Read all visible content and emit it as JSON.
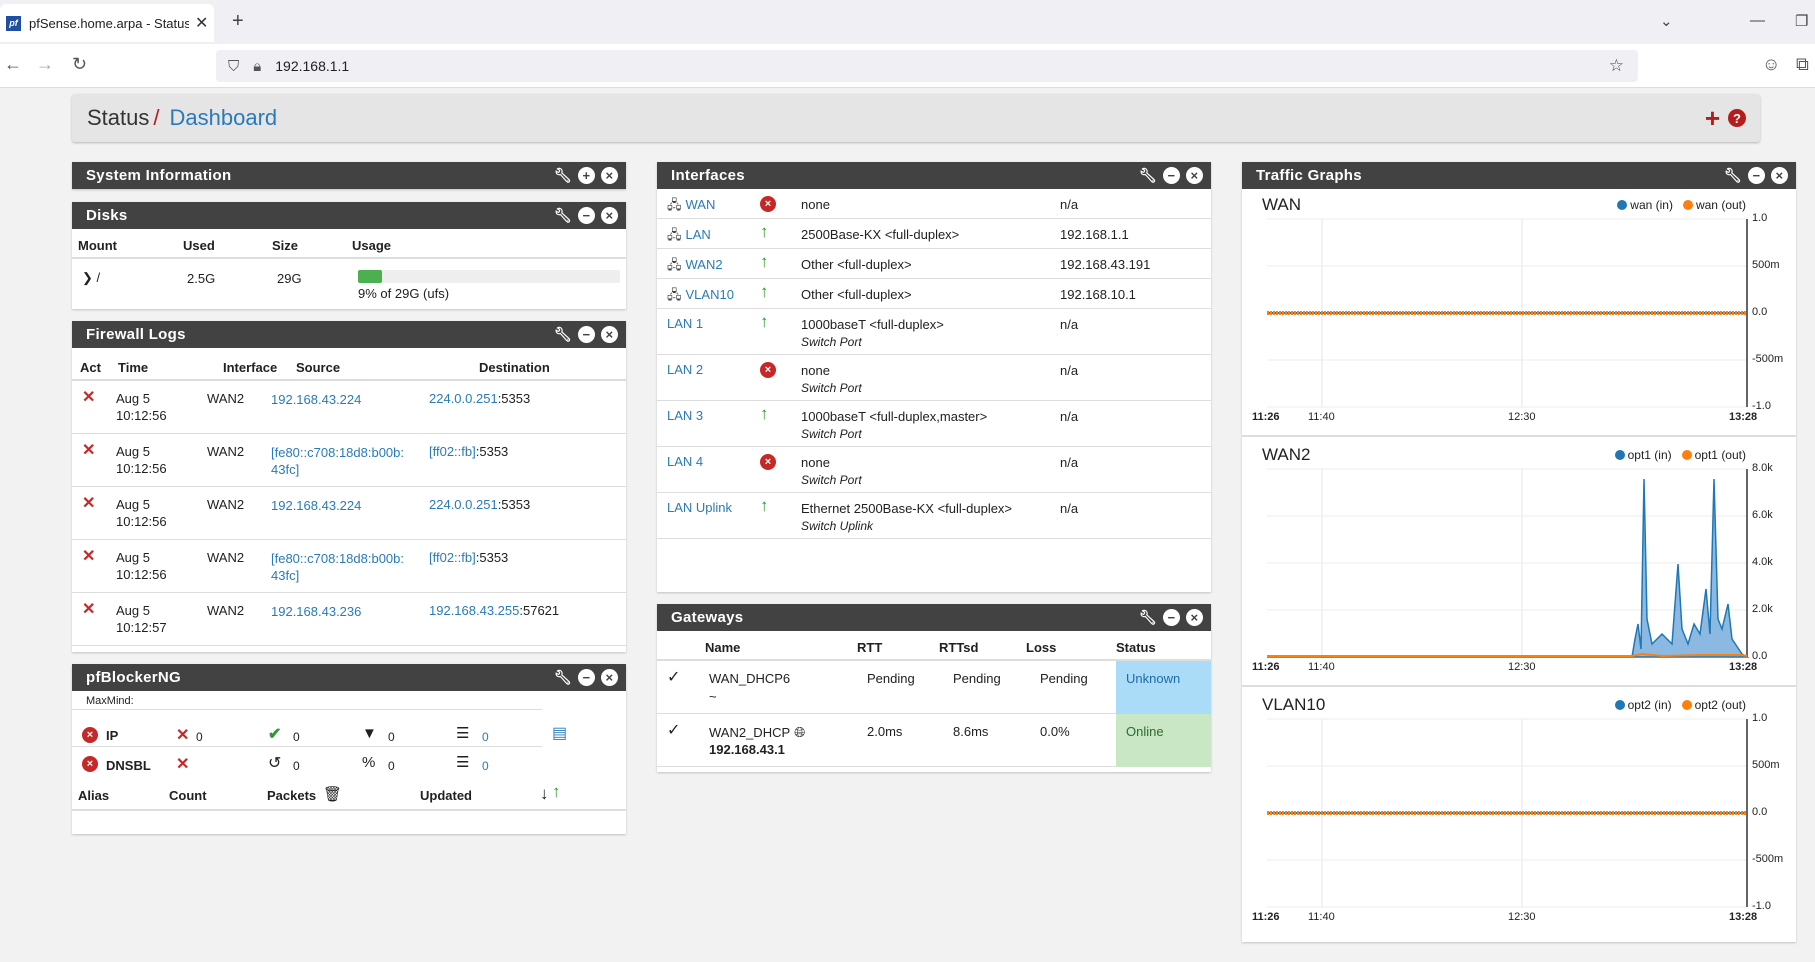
{
  "browser": {
    "tab_title": "pfSense.home.arpa - Status: Dashboard",
    "url": "192.168.1.1"
  },
  "breadcrumb": {
    "status": "Status",
    "sep": "/",
    "page": "Dashboard"
  },
  "system_info": {
    "title": "System Information"
  },
  "disks": {
    "title": "Disks",
    "headers": [
      "Mount",
      "Used",
      "Size",
      "Usage"
    ],
    "row": {
      "mount": "/",
      "used": "2.5G",
      "size": "29G",
      "usage_text": "9% of 29G (ufs)",
      "usage_percent": 9
    }
  },
  "firewall": {
    "title": "Firewall Logs",
    "headers": [
      "Act",
      "Time",
      "Interface",
      "Source",
      "Destination"
    ],
    "rows": [
      {
        "date": "Aug 5",
        "time": "10:12:56",
        "iface": "WAN2",
        "src": "192.168.43.224",
        "dst": "224.0.0.251",
        "port": ":5353"
      },
      {
        "date": "Aug 5",
        "time": "10:12:56",
        "iface": "WAN2",
        "src": "[fe80::c708:18d8:b00b:43fc]",
        "dst": "[ff02::fb]",
        "port": ":5353"
      },
      {
        "date": "Aug 5",
        "time": "10:12:56",
        "iface": "WAN2",
        "src": "192.168.43.224",
        "dst": "224.0.0.251",
        "port": ":5353"
      },
      {
        "date": "Aug 5",
        "time": "10:12:56",
        "iface": "WAN2",
        "src": "[fe80::c708:18d8:b00b:43fc]",
        "dst": "[ff02::fb]",
        "port": ":5353"
      },
      {
        "date": "Aug 5",
        "time": "10:12:57",
        "iface": "WAN2",
        "src": "192.168.43.236",
        "dst": "192.168.43.255",
        "port": ":57621"
      }
    ]
  },
  "pfblocker": {
    "title": "pfBlockerNG",
    "maxmind": "MaxMind:",
    "ip_label": "IP",
    "dnsbl_label": "DNSBL",
    "ip_vals": [
      "0",
      "0",
      "0",
      "0"
    ],
    "dnsbl_vals": [
      "0",
      "0",
      "0"
    ],
    "headers": [
      "Alias",
      "Count",
      "Packets",
      "Updated"
    ]
  },
  "interfaces": {
    "title": "Interfaces",
    "rows": [
      {
        "name": "WAN",
        "status": "down",
        "media": "none",
        "sub": "",
        "ip": "n/a",
        "net_icon": true
      },
      {
        "name": "LAN",
        "status": "up",
        "media": "2500Base-KX <full-duplex>",
        "sub": "",
        "ip": "192.168.1.1",
        "net_icon": true
      },
      {
        "name": "WAN2",
        "status": "up",
        "media": "Other <full-duplex>",
        "sub": "",
        "ip": "192.168.43.191",
        "net_icon": true
      },
      {
        "name": "VLAN10",
        "status": "up",
        "media": "Other <full-duplex>",
        "sub": "",
        "ip": "192.168.10.1",
        "net_icon": true
      },
      {
        "name": "LAN 1",
        "status": "up",
        "media": "1000baseT <full-duplex>",
        "sub": "Switch Port",
        "ip": "n/a",
        "net_icon": false
      },
      {
        "name": "LAN 2",
        "status": "down",
        "media": "none",
        "sub": "Switch Port",
        "ip": "n/a",
        "net_icon": false
      },
      {
        "name": "LAN 3",
        "status": "up",
        "media": "1000baseT <full-duplex,master>",
        "sub": "Switch Port",
        "ip": "n/a",
        "net_icon": false
      },
      {
        "name": "LAN 4",
        "status": "down",
        "media": "none",
        "sub": "Switch Port",
        "ip": "n/a",
        "net_icon": false
      },
      {
        "name": "LAN Uplink",
        "status": "up",
        "media": "Ethernet 2500Base-KX <full-duplex>",
        "sub": "Switch Uplink",
        "ip": "n/a",
        "net_icon": false
      }
    ]
  },
  "gateways": {
    "title": "Gateways",
    "headers": [
      "Name",
      "RTT",
      "RTTsd",
      "Loss",
      "Status"
    ],
    "rows": [
      {
        "name": "WAN_DHCP6",
        "sub": "~",
        "rtt": "Pending",
        "rttsd": "Pending",
        "loss": "Pending",
        "status": "Unknown",
        "status_color": "#aadcf7"
      },
      {
        "name": "WAN2_DHCP",
        "sub": "192.168.43.1",
        "rtt": "2.0ms",
        "rttsd": "8.6ms",
        "loss": "0.0%",
        "status": "Online",
        "status_color": "#c9e6c5"
      }
    ]
  },
  "traffic": {
    "title": "Traffic Graphs",
    "colors": {
      "in": "#1f77b4",
      "out": "#ff7f0e"
    },
    "graphs": [
      {
        "name": "WAN",
        "in_label": "wan (in)",
        "out_label": "wan (out)",
        "y_ticks": [
          "1.0",
          "500m",
          "0.0",
          "-500m",
          "-1.0"
        ],
        "x_ticks": [
          "11:26",
          "11:40",
          "12:30",
          "13:28"
        ]
      },
      {
        "name": "WAN2",
        "in_label": "opt1 (in)",
        "out_label": "opt1 (out)",
        "y_ticks": [
          "8.0k",
          "6.0k",
          "4.0k",
          "2.0k",
          "0.0"
        ],
        "x_ticks": [
          "11:26",
          "11:40",
          "12:30",
          "13:28"
        ]
      },
      {
        "name": "VLAN10",
        "in_label": "opt2 (in)",
        "out_label": "opt2 (out)",
        "y_ticks": [
          "1.0",
          "500m",
          "0.0",
          "-500m",
          "-1.0"
        ],
        "x_ticks": [
          "11:26",
          "11:40",
          "12:30",
          "13:28"
        ]
      }
    ]
  }
}
